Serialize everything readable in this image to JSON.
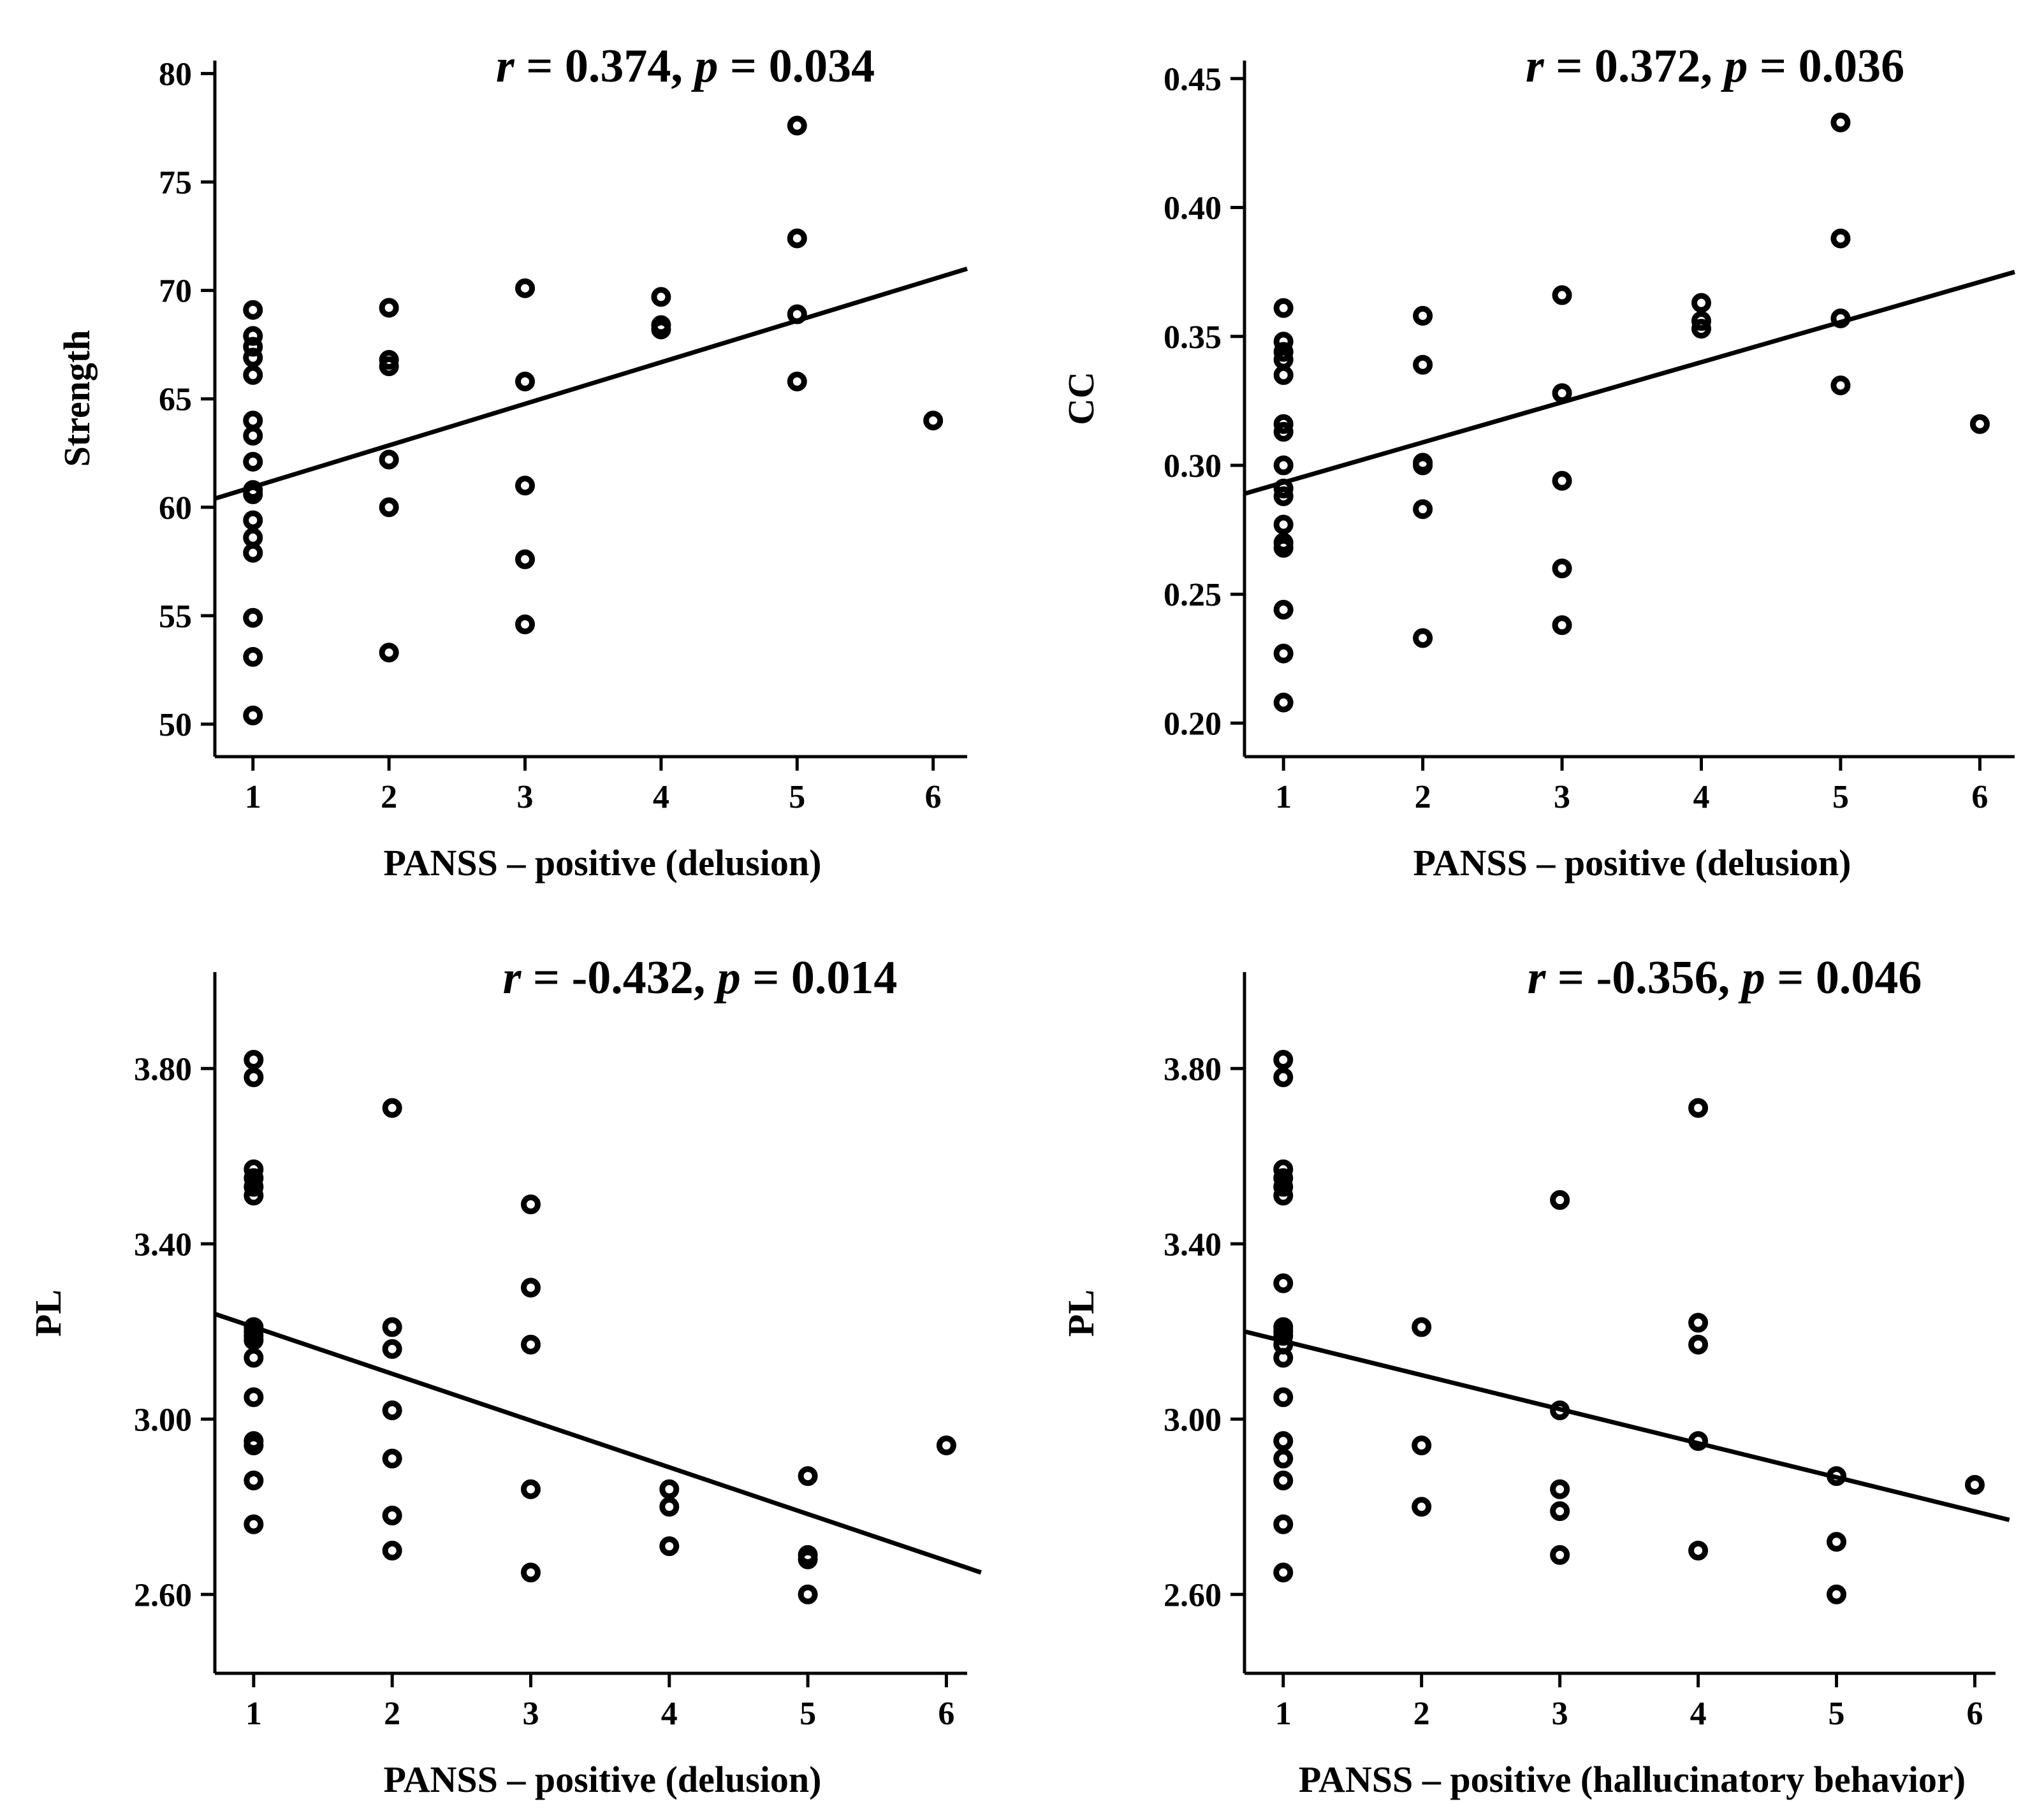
{
  "chart_data": [
    {
      "type": "scatter",
      "title": "",
      "annotation": {
        "r_label": "r",
        "r_value": "0.374",
        "p_label": "p",
        "p_value": "0.034"
      },
      "xlabel": "PANSS – positive (delusion)",
      "ylabel": "Strength",
      "x_ticks": [
        "1",
        "2",
        "3",
        "4",
        "5",
        "6"
      ],
      "y_ticks": [
        "50",
        "55",
        "60",
        "65",
        "70",
        "75",
        "80"
      ],
      "xlim": [
        0.72,
        6.25
      ],
      "ylim": [
        48.5,
        80.6
      ],
      "fit_line": {
        "x": [
          0.72,
          6.25
        ],
        "y": [
          60.4,
          71.0
        ]
      },
      "points": [
        [
          1,
          69.1
        ],
        [
          1,
          67.9
        ],
        [
          1,
          67.4
        ],
        [
          1,
          66.9
        ],
        [
          1,
          66.1
        ],
        [
          1,
          64.0
        ],
        [
          1,
          63.3
        ],
        [
          1,
          62.1
        ],
        [
          1,
          60.8
        ],
        [
          1,
          60.6
        ],
        [
          1,
          59.4
        ],
        [
          1,
          58.6
        ],
        [
          1,
          57.9
        ],
        [
          1,
          54.9
        ],
        [
          1,
          53.1
        ],
        [
          1,
          50.4
        ],
        [
          2,
          69.2
        ],
        [
          2,
          66.8
        ],
        [
          2,
          66.5
        ],
        [
          2,
          62.2
        ],
        [
          2,
          60.0
        ],
        [
          2,
          53.3
        ],
        [
          3,
          70.1
        ],
        [
          3,
          65.8
        ],
        [
          3,
          61.0
        ],
        [
          3,
          57.6
        ],
        [
          3,
          54.6
        ],
        [
          4,
          69.7
        ],
        [
          4,
          68.4
        ],
        [
          4,
          68.2
        ],
        [
          5,
          77.6
        ],
        [
          5,
          72.4
        ],
        [
          5,
          68.9
        ],
        [
          5,
          65.8
        ],
        [
          6,
          64.0
        ]
      ]
    },
    {
      "type": "scatter",
      "title": "",
      "annotation": {
        "r_label": "r",
        "r_value": "0.372",
        "p_label": "p",
        "p_value": "0.036"
      },
      "xlabel": "PANSS – positive (delusion)",
      "ylabel": "CC",
      "x_ticks": [
        "1",
        "2",
        "3",
        "4",
        "5",
        "6"
      ],
      "y_ticks": [
        "0.20",
        "0.25",
        "0.30",
        "0.35",
        "0.40",
        "0.45"
      ],
      "xlim": [
        0.72,
        6.25
      ],
      "ylim": [
        0.187,
        0.457
      ],
      "fit_line": {
        "x": [
          0.72,
          6.25
        ],
        "y": [
          0.289,
          0.375
        ]
      },
      "points": [
        [
          1,
          0.361
        ],
        [
          1,
          0.348
        ],
        [
          1,
          0.344
        ],
        [
          1,
          0.341
        ],
        [
          1,
          0.335
        ],
        [
          1,
          0.316
        ],
        [
          1,
          0.313
        ],
        [
          1,
          0.3
        ],
        [
          1,
          0.291
        ],
        [
          1,
          0.288
        ],
        [
          1,
          0.277
        ],
        [
          1,
          0.27
        ],
        [
          1,
          0.268
        ],
        [
          1,
          0.244
        ],
        [
          1,
          0.227
        ],
        [
          1,
          0.208
        ],
        [
          2,
          0.358
        ],
        [
          2,
          0.339
        ],
        [
          2,
          0.301
        ],
        [
          2,
          0.3
        ],
        [
          2,
          0.283
        ],
        [
          2,
          0.233
        ],
        [
          3,
          0.366
        ],
        [
          3,
          0.328
        ],
        [
          3,
          0.294
        ],
        [
          3,
          0.26
        ],
        [
          3,
          0.238
        ],
        [
          4,
          0.363
        ],
        [
          4,
          0.356
        ],
        [
          4,
          0.353
        ],
        [
          5,
          0.433
        ],
        [
          5,
          0.388
        ],
        [
          5,
          0.357
        ],
        [
          5,
          0.331
        ],
        [
          6,
          0.316
        ]
      ]
    },
    {
      "type": "scatter",
      "title": "",
      "annotation": {
        "r_label": "r",
        "r_value": "-0.432",
        "p_label": "p",
        "p_value": "0.014"
      },
      "xlabel": "PANSS – positive (delusion)",
      "ylabel": "PL",
      "x_ticks": [
        "1",
        "2",
        "3",
        "4",
        "5",
        "6"
      ],
      "y_ticks": [
        "2.60",
        "3.00",
        "3.40",
        "3.80"
      ],
      "xlim": [
        0.72,
        6.15
      ],
      "ylim": [
        2.42,
        4.02
      ],
      "fit_line": {
        "x": [
          0.72,
          6.25
        ],
        "y": [
          3.24,
          2.65
        ]
      },
      "points": [
        [
          1,
          3.82
        ],
        [
          1,
          3.78
        ],
        [
          1,
          3.57
        ],
        [
          1,
          3.55
        ],
        [
          1,
          3.53
        ],
        [
          1,
          3.51
        ],
        [
          1,
          3.21
        ],
        [
          1,
          3.2
        ],
        [
          1,
          3.19
        ],
        [
          1,
          3.18
        ],
        [
          1,
          3.14
        ],
        [
          1,
          3.05
        ],
        [
          1,
          2.95
        ],
        [
          1,
          2.94
        ],
        [
          1,
          2.86
        ],
        [
          1,
          2.76
        ],
        [
          2,
          3.71
        ],
        [
          2,
          3.21
        ],
        [
          2,
          3.16
        ],
        [
          2,
          3.02
        ],
        [
          2,
          2.91
        ],
        [
          2,
          2.78
        ],
        [
          2,
          2.7
        ],
        [
          3,
          3.49
        ],
        [
          3,
          3.3
        ],
        [
          3,
          3.17
        ],
        [
          3,
          2.84
        ],
        [
          3,
          2.65
        ],
        [
          4,
          2.84
        ],
        [
          4,
          2.8
        ],
        [
          4,
          2.71
        ],
        [
          5,
          2.87
        ],
        [
          5,
          2.69
        ],
        [
          5,
          2.68
        ],
        [
          5,
          2.6
        ],
        [
          6,
          2.94
        ]
      ]
    },
    {
      "type": "scatter",
      "title": "",
      "annotation": {
        "r_label": "r",
        "r_value": "-0.356",
        "p_label": "p",
        "p_value": "0.046"
      },
      "xlabel": "PANSS – positive (hallucinatory behavior)",
      "ylabel": "PL",
      "x_ticks": [
        "1",
        "2",
        "3",
        "4",
        "5",
        "6"
      ],
      "y_ticks": [
        "2.60",
        "3.00",
        "3.40",
        "3.80"
      ],
      "xlim": [
        0.72,
        6.15
      ],
      "ylim": [
        2.42,
        4.02
      ],
      "fit_line": {
        "x": [
          0.72,
          6.25
        ],
        "y": [
          3.2,
          2.77
        ]
      },
      "points": [
        [
          1,
          3.82
        ],
        [
          1,
          3.78
        ],
        [
          1,
          3.57
        ],
        [
          1,
          3.55
        ],
        [
          1,
          3.53
        ],
        [
          1,
          3.51
        ],
        [
          1,
          3.31
        ],
        [
          1,
          3.21
        ],
        [
          1,
          3.2
        ],
        [
          1,
          3.19
        ],
        [
          1,
          3.17
        ],
        [
          1,
          3.14
        ],
        [
          1,
          3.05
        ],
        [
          1,
          2.95
        ],
        [
          1,
          2.91
        ],
        [
          1,
          2.86
        ],
        [
          1,
          2.76
        ],
        [
          1,
          2.65
        ],
        [
          2,
          3.21
        ],
        [
          2,
          2.94
        ],
        [
          2,
          2.8
        ],
        [
          3,
          3.5
        ],
        [
          3,
          3.02
        ],
        [
          3,
          2.84
        ],
        [
          3,
          2.79
        ],
        [
          3,
          2.69
        ],
        [
          4,
          3.71
        ],
        [
          4,
          3.22
        ],
        [
          4,
          3.17
        ],
        [
          4,
          2.95
        ],
        [
          4,
          2.7
        ],
        [
          5,
          2.87
        ],
        [
          5,
          2.72
        ],
        [
          5,
          2.6
        ],
        [
          6,
          2.85
        ]
      ]
    }
  ]
}
